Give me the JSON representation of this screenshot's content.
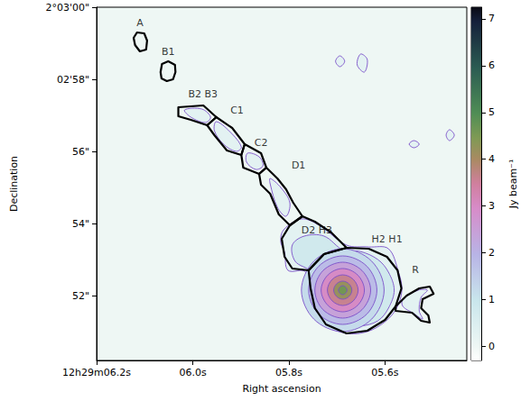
{
  "chart_data": {
    "type": "contour_image",
    "x_label": "Right ascension",
    "y_label": "Declination",
    "xlim": [
      6.2,
      5.43
    ],
    "ylim": [
      50.2,
      60
    ],
    "xticks": [
      {
        "value": 6.2,
        "label": "12h29m06.2s"
      },
      {
        "value": 6.0,
        "label": "06.0s"
      },
      {
        "value": 5.8,
        "label": "05.8s"
      },
      {
        "value": 5.6,
        "label": "05.6s"
      }
    ],
    "yticks": [
      {
        "value": 60,
        "label": "2°03'00\""
      },
      {
        "value": 58,
        "label": "02'58\""
      },
      {
        "value": 56,
        "label": "56\""
      },
      {
        "value": 54,
        "label": "54\""
      },
      {
        "value": 52,
        "label": "52\""
      }
    ],
    "grid": false,
    "background_level": 0,
    "colorbar": {
      "label": "Jy beam⁻¹",
      "range": [
        -0.3,
        7.25
      ],
      "ticks": [
        0,
        1,
        2,
        3,
        4,
        5,
        6,
        7
      ]
    },
    "contours": [
      {
        "level": 0.3,
        "polygons": [
          [
            [
              6.017,
              57.15
            ],
            [
              5.981,
              57.175
            ],
            [
              5.963,
              56.95
            ],
            [
              5.974,
              56.8
            ],
            [
              6.004,
              56.95
            ]
          ],
          [
            [
              5.951,
              56.825
            ],
            [
              5.923,
              56.55
            ],
            [
              5.899,
              56.125
            ],
            [
              5.91,
              56.0
            ],
            [
              5.936,
              56.2
            ],
            [
              5.955,
              56.575
            ]
          ],
          [
            [
              5.886,
              55.95
            ],
            [
              5.862,
              55.85
            ],
            [
              5.854,
              55.6
            ],
            [
              5.869,
              55.5
            ],
            [
              5.888,
              55.7
            ]
          ],
          [
            [
              5.839,
              55.25
            ],
            [
              5.817,
              55.0
            ],
            [
              5.798,
              54.575
            ],
            [
              5.806,
              54.2
            ],
            [
              5.824,
              54.45
            ],
            [
              5.839,
              55.1
            ]
          ],
          [
            [
              5.811,
              53.825
            ],
            [
              5.774,
              54.125
            ],
            [
              5.737,
              53.95
            ],
            [
              5.68,
              53.4
            ],
            [
              5.634,
              53.35
            ],
            [
              5.593,
              53.3
            ],
            [
              5.572,
              52.65
            ],
            [
              5.565,
              52.15
            ],
            [
              5.576,
              51.65
            ],
            [
              5.6,
              51.275
            ],
            [
              5.637,
              51.0
            ],
            [
              5.68,
              50.95
            ],
            [
              5.723,
              51.175
            ],
            [
              5.746,
              51.55
            ],
            [
              5.765,
              52.65
            ],
            [
              5.802,
              52.7
            ],
            [
              5.809,
              53.2
            ],
            [
              5.817,
              53.5
            ]
          ],
          [
            [
              5.563,
              51.9
            ],
            [
              5.531,
              52.15
            ],
            [
              5.512,
              52.15
            ],
            [
              5.525,
              51.95
            ],
            [
              5.529,
              51.575
            ],
            [
              5.522,
              51.35
            ],
            [
              5.54,
              51.5
            ],
            [
              5.563,
              51.7
            ]
          ],
          [
            [
              5.703,
              58.5
            ],
            [
              5.694,
              58.65
            ],
            [
              5.684,
              58.5
            ],
            [
              5.694,
              58.35
            ]
          ],
          [
            [
              5.658,
              58.4
            ],
            [
              5.651,
              58.7
            ],
            [
              5.637,
              58.55
            ],
            [
              5.643,
              58.2
            ]
          ],
          [
            [
              5.55,
              56.2
            ],
            [
              5.54,
              56.3
            ],
            [
              5.529,
              56.2
            ],
            [
              5.54,
              56.1
            ]
          ],
          [
            [
              5.473,
              56.45
            ],
            [
              5.466,
              56.6
            ],
            [
              5.456,
              56.45
            ],
            [
              5.466,
              56.3
            ]
          ]
        ]
      },
      {
        "level": 0.8,
        "polygons": [
          [
            [
              5.768,
              53.65
            ],
            [
              5.727,
              53.65
            ],
            [
              5.686,
              53.25
            ],
            [
              5.652,
              53.225
            ],
            [
              5.615,
              53.0
            ],
            [
              5.593,
              52.65
            ],
            [
              5.581,
              52.15
            ],
            [
              5.593,
              51.65
            ],
            [
              5.615,
              51.3
            ],
            [
              5.652,
              51.15
            ],
            [
              5.694,
              51.15
            ],
            [
              5.727,
              51.4
            ],
            [
              5.742,
              51.825
            ],
            [
              5.755,
              52.65
            ],
            [
              5.787,
              52.95
            ],
            [
              5.793,
              53.4
            ]
          ]
        ]
      },
      {
        "level": 1.2,
        "polygons": [
          [
            [
              5.602,
              52.15
            ],
            [
              5.628,
              52.955
            ],
            [
              5.688,
              53.3
            ],
            [
              5.748,
              52.955
            ],
            [
              5.774,
              52.15
            ],
            [
              5.748,
              51.345
            ],
            [
              5.688,
              51.0
            ],
            [
              5.628,
              51.345
            ]
          ]
        ]
      },
      {
        "level": 1.8,
        "polygons": [
          [
            [
              5.617,
              52.15
            ],
            [
              5.638,
              52.815
            ],
            [
              5.688,
              53.1
            ],
            [
              5.738,
              52.815
            ],
            [
              5.759,
              52.15
            ],
            [
              5.738,
              51.485
            ],
            [
              5.688,
              51.2
            ],
            [
              5.638,
              51.485
            ]
          ]
        ]
      },
      {
        "level": 2.4,
        "polygons": [
          [
            [
              5.63,
              52.15
            ],
            [
              5.648,
              52.693
            ],
            [
              5.688,
              52.925
            ],
            [
              5.729,
              52.693
            ],
            [
              5.746,
              52.15
            ],
            [
              5.729,
              51.608
            ],
            [
              5.688,
              51.375
            ],
            [
              5.648,
              51.608
            ]
          ]
        ]
      },
      {
        "level": 3,
        "polygons": [
          [
            [
              5.643,
              52.15
            ],
            [
              5.657,
              52.57
            ],
            [
              5.688,
              52.75
            ],
            [
              5.719,
              52.57
            ],
            [
              5.733,
              52.15
            ],
            [
              5.719,
              51.73
            ],
            [
              5.688,
              51.55
            ],
            [
              5.657,
              51.73
            ]
          ]
        ]
      },
      {
        "level": 3.6,
        "polygons": [
          [
            [
              5.656,
              52.15
            ],
            [
              5.666,
              52.448
            ],
            [
              5.688,
              52.575
            ],
            [
              5.71,
              52.448
            ],
            [
              5.72,
              52.15
            ],
            [
              5.71,
              51.853
            ],
            [
              5.688,
              51.725
            ],
            [
              5.666,
              51.853
            ]
          ]
        ]
      },
      {
        "level": 4.2,
        "polygons": [
          [
            [
              5.669,
              52.15
            ],
            [
              5.675,
              52.325
            ],
            [
              5.688,
              52.4
            ],
            [
              5.701,
              52.325
            ],
            [
              5.707,
              52.15
            ],
            [
              5.701,
              51.975
            ],
            [
              5.688,
              51.9
            ],
            [
              5.675,
              51.975
            ]
          ]
        ]
      },
      {
        "level": 4.6,
        "polygons": [
          [
            [
              5.679,
              52.15
            ],
            [
              5.682,
              52.238
            ],
            [
              5.688,
              52.275
            ],
            [
              5.694,
              52.238
            ],
            [
              5.697,
              52.15
            ],
            [
              5.694,
              52.063
            ],
            [
              5.688,
              52.025
            ],
            [
              5.682,
              52.063
            ]
          ]
        ]
      }
    ],
    "regions": [
      {
        "label": "A",
        "label_at": [
          6.11,
          59.575
        ],
        "polygon": [
          [
            6.123,
            59.15
          ],
          [
            6.116,
            59.3
          ],
          [
            6.101,
            59.275
          ],
          [
            6.095,
            59.075
          ],
          [
            6.097,
            58.825
          ],
          [
            6.11,
            58.775
          ],
          [
            6.12,
            58.95
          ]
        ]
      },
      {
        "label": "B1",
        "label_at": [
          6.051,
          58.775
        ],
        "polygon": [
          [
            6.067,
            58.2
          ],
          [
            6.064,
            58.425
          ],
          [
            6.051,
            58.5
          ],
          [
            6.037,
            58.4
          ],
          [
            6.036,
            58.2
          ],
          [
            6.041,
            58.0
          ],
          [
            6.054,
            57.95
          ],
          [
            6.065,
            58.025
          ]
        ]
      },
      {
        "label": "B2 B3",
        "label_at": [
          5.979,
          57.6
        ],
        "polygon": [
          [
            6.03,
            57.225
          ],
          [
            5.978,
            57.275
          ],
          [
            5.951,
            56.95
          ],
          [
            5.97,
            56.725
          ],
          [
            6.004,
            56.875
          ],
          [
            6.03,
            56.975
          ]
        ]
      },
      {
        "label": "C1",
        "label_at": [
          5.908,
          57.15
        ],
        "polygon": [
          [
            5.97,
            56.725
          ],
          [
            5.951,
            56.95
          ],
          [
            5.918,
            56.65
          ],
          [
            5.892,
            56.2
          ],
          [
            5.899,
            55.9
          ],
          [
            5.929,
            56.025
          ],
          [
            5.955,
            56.45
          ]
        ]
      },
      {
        "label": "C2",
        "label_at": [
          5.858,
          56.25
        ],
        "polygon": [
          [
            5.899,
            55.9
          ],
          [
            5.892,
            56.2
          ],
          [
            5.858,
            55.95
          ],
          [
            5.847,
            55.55
          ],
          [
            5.862,
            55.375
          ],
          [
            5.895,
            55.55
          ]
        ]
      },
      {
        "label": "D1",
        "label_at": [
          5.78,
          55.625
        ],
        "polygon": [
          [
            5.862,
            55.375
          ],
          [
            5.847,
            55.55
          ],
          [
            5.824,
            55.25
          ],
          [
            5.806,
            54.95
          ],
          [
            5.791,
            54.575
          ],
          [
            5.772,
            54.2
          ],
          [
            5.798,
            53.95
          ],
          [
            5.821,
            54.25
          ],
          [
            5.839,
            54.825
          ],
          [
            5.858,
            55.075
          ]
        ]
      },
      {
        "label": "D2 H3",
        "label_at": [
          5.742,
          53.825
        ],
        "polygon": [
          [
            5.798,
            53.95
          ],
          [
            5.772,
            54.2
          ],
          [
            5.746,
            54.05
          ],
          [
            5.712,
            53.75
          ],
          [
            5.68,
            53.325
          ],
          [
            5.727,
            53.15
          ],
          [
            5.759,
            52.7
          ],
          [
            5.793,
            52.75
          ],
          [
            5.809,
            53.075
          ],
          [
            5.815,
            53.575
          ]
        ]
      },
      {
        "label": "H2 H1",
        "label_at": [
          5.596,
          53.575
        ],
        "polygon": [
          [
            5.759,
            52.7
          ],
          [
            5.727,
            53.15
          ],
          [
            5.68,
            53.325
          ],
          [
            5.634,
            53.3
          ],
          [
            5.596,
            53.075
          ],
          [
            5.574,
            52.7
          ],
          [
            5.566,
            52.2
          ],
          [
            5.578,
            51.7
          ],
          [
            5.6,
            51.325
          ],
          [
            5.637,
            51.025
          ],
          [
            5.68,
            50.95
          ],
          [
            5.723,
            51.2
          ],
          [
            5.746,
            51.65
          ],
          [
            5.755,
            52.2
          ]
        ]
      },
      {
        "label": "R",
        "label_at": [
          5.537,
          52.725
        ],
        "polygon": [
          [
            5.578,
            51.7
          ],
          [
            5.555,
            52.0
          ],
          [
            5.529,
            52.2
          ],
          [
            5.507,
            52.25
          ],
          [
            5.499,
            52.05
          ],
          [
            5.522,
            51.9
          ],
          [
            5.525,
            51.65
          ],
          [
            5.51,
            51.45
          ],
          [
            5.507,
            51.25
          ],
          [
            5.525,
            51.3
          ],
          [
            5.544,
            51.525
          ],
          [
            5.578,
            51.575
          ]
        ]
      }
    ]
  }
}
